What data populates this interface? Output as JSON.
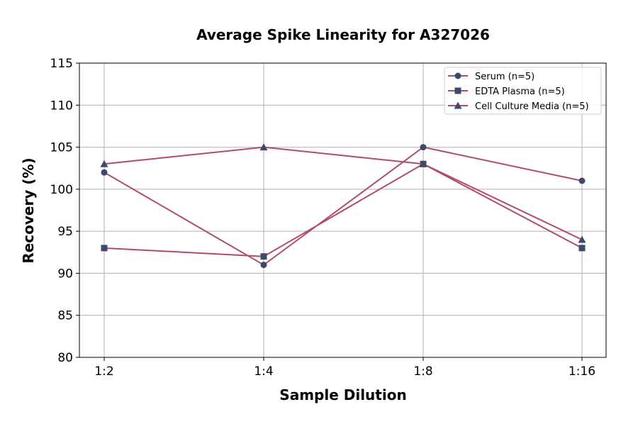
{
  "chart_data": {
    "type": "line",
    "title": "Average Spike Linearity for A327026",
    "xlabel": "Sample Dilution",
    "ylabel": "Recovery (%)",
    "categories": [
      "1:2",
      "1:4",
      "1:8",
      "1:16"
    ],
    "ylim": [
      80,
      115
    ],
    "yticks": [
      80,
      85,
      90,
      95,
      100,
      105,
      110,
      115
    ],
    "grid": true,
    "legend_placement": "upper-right",
    "line_color": "#b04a72",
    "marker_color": "#3b4a6b",
    "series": [
      {
        "name": "Serum (n=5)",
        "marker": "circle",
        "values": [
          102,
          91,
          105,
          101
        ]
      },
      {
        "name": "EDTA Plasma (n=5)",
        "marker": "square",
        "values": [
          93,
          92,
          103,
          93
        ]
      },
      {
        "name": "Cell Culture Media (n=5)",
        "marker": "triangle",
        "values": [
          103,
          105,
          103,
          94
        ]
      }
    ]
  }
}
